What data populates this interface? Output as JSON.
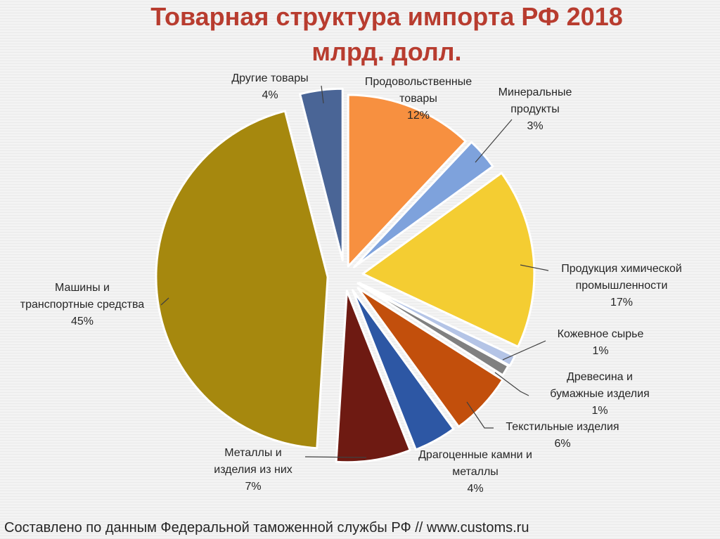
{
  "chart_data": {
    "type": "pie",
    "title": "Товарная структура импорта РФ 2018",
    "subtitle": "млрд. долл.",
    "slices": [
      {
        "label_lines": [
          "Продовольственные",
          "товары"
        ],
        "pct": "12%",
        "value": 12,
        "color": "#f79040"
      },
      {
        "label_lines": [
          "Минеральные",
          "продукты"
        ],
        "pct": "3%",
        "value": 3,
        "color": "#7ea2dc"
      },
      {
        "label_lines": [
          "Продукция химической",
          "промышленности"
        ],
        "pct": "17%",
        "value": 17,
        "color": "#f4cd32"
      },
      {
        "label_lines": [
          "Кожевное сырье"
        ],
        "pct": "1%",
        "value": 1,
        "color": "#b4c4e6"
      },
      {
        "label_lines": [
          "Древесина и",
          "бумажные изделия"
        ],
        "pct": "1%",
        "value": 1,
        "color": "#808080"
      },
      {
        "label_lines": [
          "Текстильные изделия"
        ],
        "pct": "6%",
        "value": 6,
        "color": "#c24f0c"
      },
      {
        "label_lines": [
          "Драгоценные камни и",
          "металлы"
        ],
        "pct": "4%",
        "value": 4,
        "color": "#2d57a4"
      },
      {
        "label_lines": [
          "Металлы и",
          "изделия из них"
        ],
        "pct": "7%",
        "value": 7,
        "color": "#6e1a12"
      },
      {
        "label_lines": [
          "Машины и",
          "транспортные средства"
        ],
        "pct": "45%",
        "value": 45,
        "color": "#a6880e"
      },
      {
        "label_lines": [
          "Другие товары"
        ],
        "pct": "4%",
        "value": 4,
        "color": "#4a6596"
      }
    ]
  },
  "source": "Составлено по данным Федеральной таможенной службы РФ // www.customs.ru"
}
